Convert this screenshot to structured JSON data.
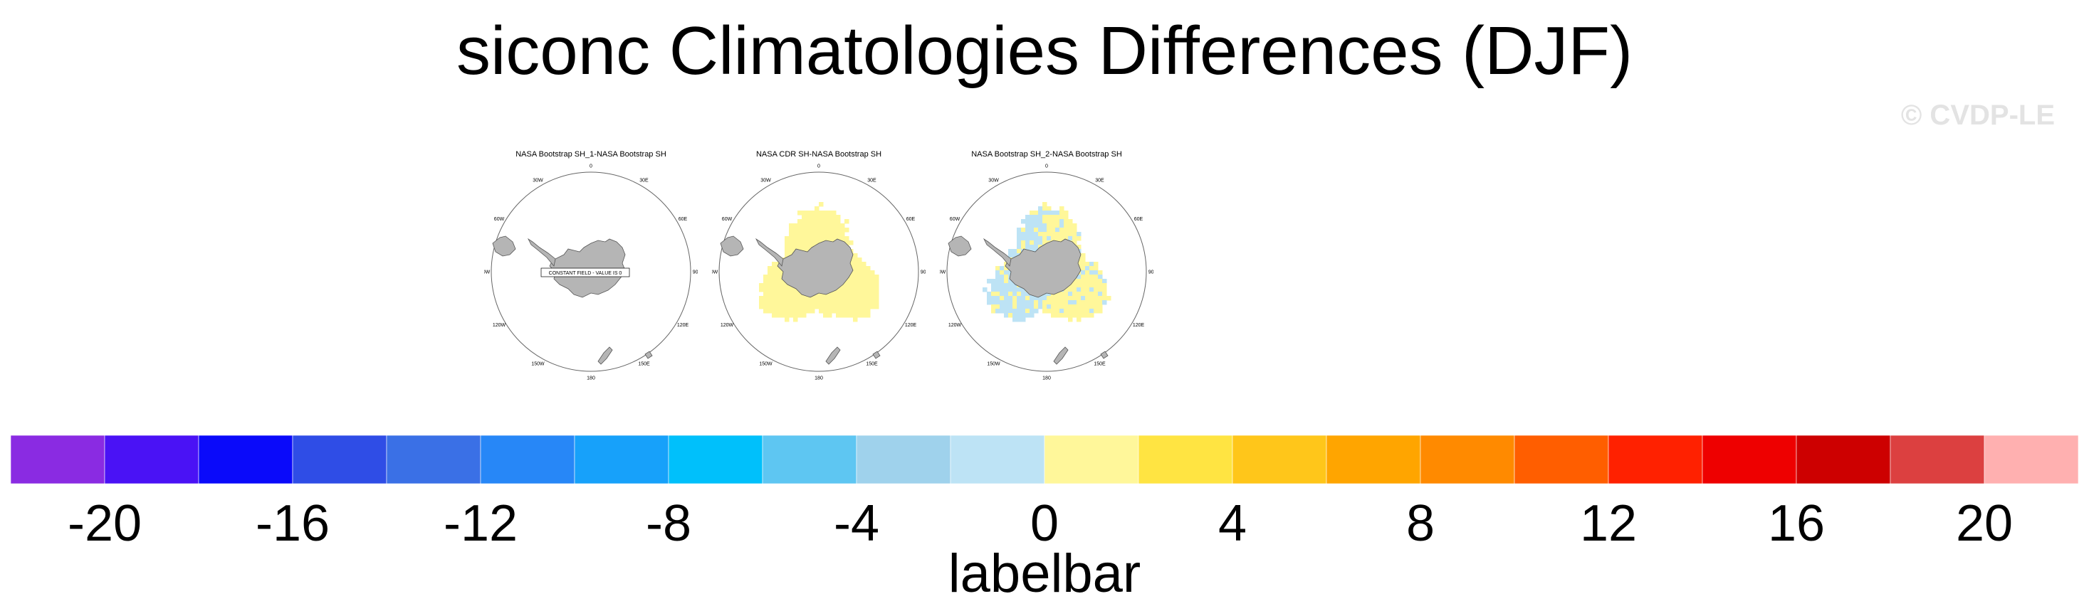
{
  "title": "siconc Climatologies Differences (DJF)",
  "watermark": "© CVDP-LE",
  "panels": [
    {
      "title": "NASA Bootstrap SH_1-NASA Bootstrap SH",
      "annotation": "CONSTANT FIELD - VALUE IS 0",
      "fill": "none"
    },
    {
      "title": "NASA CDR SH-NASA Bootstrap SH",
      "annotation": "",
      "fill": "yellow"
    },
    {
      "title": "NASA Bootstrap SH_2-NASA Bootstrap SH",
      "annotation": "",
      "fill": "mixed"
    }
  ],
  "longitude_labels": [
    "0",
    "30E",
    "60E",
    "90E",
    "120E",
    "150E",
    "180",
    "150W",
    "120W",
    "90W",
    "60W",
    "30W"
  ],
  "colorbar": {
    "title": "labelbar",
    "min": -22,
    "max": 22,
    "step": 2,
    "colors": [
      "#8a2be2",
      "#4a12f5",
      "#0a0afa",
      "#2f4de6",
      "#3a70e6",
      "#2787f7",
      "#17a1fa",
      "#00c0fb",
      "#5ec6f2",
      "#9fd2ec",
      "#bde3f5",
      "#fff79a",
      "#ffe442",
      "#ffc61a",
      "#ffa500",
      "#ff8a00",
      "#ff5e00",
      "#ff2100",
      "#ee0000",
      "#cd0000",
      "#dc4040",
      "#ffb0b0"
    ],
    "tick_labels": [
      "-20",
      "-16",
      "-12",
      "-8",
      "-4",
      "0",
      "4",
      "8",
      "12",
      "16",
      "20"
    ],
    "tick_values": [
      -20,
      -16,
      -12,
      -8,
      -4,
      0,
      4,
      8,
      12,
      16,
      20
    ]
  }
}
